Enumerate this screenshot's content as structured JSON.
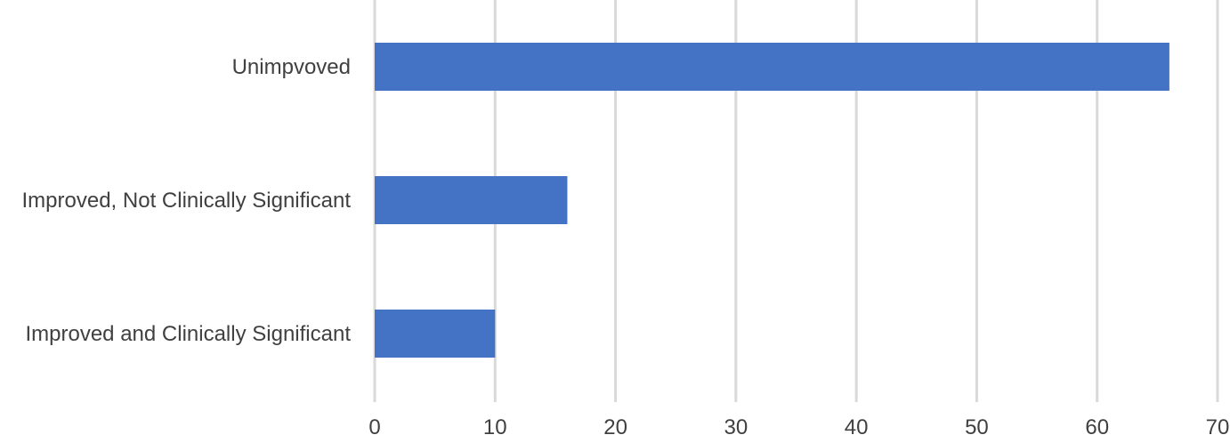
{
  "chart_data": {
    "type": "bar",
    "orientation": "horizontal",
    "categories": [
      "Unimpvoved",
      "Improved, Not Clinically Significant",
      "Improved and Clinically Significant"
    ],
    "values": [
      66,
      16,
      10
    ],
    "xlim": [
      0,
      70
    ],
    "xticks": [
      0,
      10,
      20,
      30,
      40,
      50,
      60,
      70
    ],
    "grid": true,
    "legend": "none",
    "bar_color": "#4472c4",
    "grid_color": "#d9d9d9",
    "label_color": "#404040"
  }
}
